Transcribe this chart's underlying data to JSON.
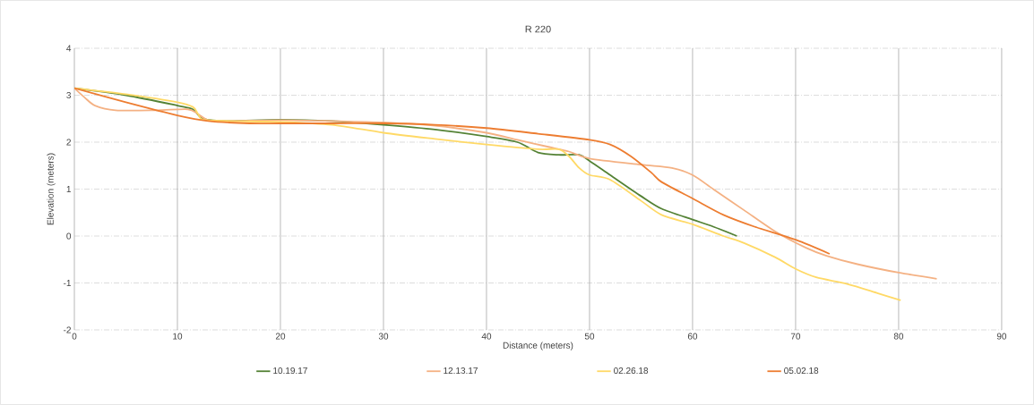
{
  "chart_data": {
    "type": "line",
    "title": "R 220",
    "xlabel": "Distance (meters)",
    "ylabel": "Elevation (meters)",
    "xlim": [
      0,
      90
    ],
    "ylim": [
      -2,
      4
    ],
    "xticks": [
      0,
      10,
      20,
      30,
      40,
      50,
      60,
      70,
      80,
      90
    ],
    "yticks": [
      -2,
      -1,
      0,
      1,
      2,
      3,
      4
    ],
    "grid": true,
    "legend": "bottom",
    "marker": "none",
    "line_style": "solid",
    "series": [
      {
        "name": "10.19.17",
        "color": "#548235",
        "x": [
          0,
          5,
          10,
          11.5,
          12.5,
          15,
          20,
          25,
          30,
          35,
          40,
          43,
          45,
          47,
          49,
          50,
          52,
          55,
          57,
          60,
          62,
          64.3
        ],
        "values": [
          3.15,
          3.0,
          2.78,
          2.7,
          2.5,
          2.45,
          2.48,
          2.45,
          2.37,
          2.27,
          2.12,
          2.0,
          1.78,
          1.73,
          1.73,
          1.6,
          1.3,
          0.85,
          0.58,
          0.35,
          0.2,
          0.0
        ]
      },
      {
        "name": "12.13.17",
        "color": "#f4b183",
        "x": [
          0,
          1,
          2,
          4,
          8,
          11,
          12,
          13,
          15,
          20,
          25,
          30,
          35,
          40,
          43,
          46,
          48,
          50,
          55,
          58,
          60,
          62,
          65,
          68,
          71,
          73,
          76,
          80,
          83.7
        ],
        "values": [
          3.15,
          2.95,
          2.78,
          2.68,
          2.68,
          2.7,
          2.6,
          2.47,
          2.45,
          2.47,
          2.45,
          2.42,
          2.35,
          2.2,
          2.05,
          1.9,
          1.8,
          1.65,
          1.52,
          1.45,
          1.3,
          1.0,
          0.55,
          0.1,
          -0.25,
          -0.42,
          -0.6,
          -0.78,
          -0.91
        ]
      },
      {
        "name": "02.26.18",
        "color": "#ffd966",
        "x": [
          0,
          5,
          10,
          11.5,
          12,
          12.5,
          15,
          20,
          25,
          30,
          35,
          40,
          45,
          47,
          48,
          49,
          50,
          52,
          55,
          57,
          60,
          63,
          65,
          68,
          70,
          72,
          75,
          78,
          80.2
        ],
        "values": [
          3.15,
          3.02,
          2.85,
          2.75,
          2.6,
          2.48,
          2.45,
          2.43,
          2.37,
          2.2,
          2.07,
          1.95,
          1.85,
          1.85,
          1.7,
          1.45,
          1.3,
          1.2,
          0.75,
          0.45,
          0.25,
          0.0,
          -0.15,
          -0.45,
          -0.7,
          -0.88,
          -1.02,
          -1.22,
          -1.37
        ]
      },
      {
        "name": "05.02.18",
        "color": "#ed7d31",
        "x": [
          0,
          5,
          10,
          13,
          17,
          20,
          25,
          30,
          35,
          40,
          45,
          50,
          52,
          54,
          56,
          57,
          60,
          63,
          66,
          70,
          73.3
        ],
        "values": [
          3.15,
          2.85,
          2.57,
          2.45,
          2.4,
          2.4,
          2.4,
          2.4,
          2.37,
          2.3,
          2.18,
          2.05,
          1.95,
          1.7,
          1.35,
          1.15,
          0.8,
          0.45,
          0.2,
          -0.08,
          -0.38
        ]
      }
    ]
  }
}
